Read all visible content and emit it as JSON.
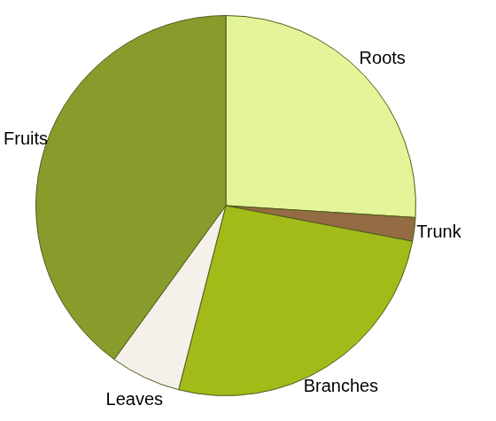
{
  "chart_data": {
    "type": "pie",
    "categories": [
      "Roots",
      "Trunk",
      "Branches",
      "Leaves",
      "Fruits"
    ],
    "values": [
      26,
      2,
      26,
      6,
      40
    ],
    "colors": [
      "#e3f598",
      "#946b43",
      "#a2bb18",
      "#f5f0ea",
      "#879c2b"
    ],
    "legend": false,
    "data_labels": false
  }
}
